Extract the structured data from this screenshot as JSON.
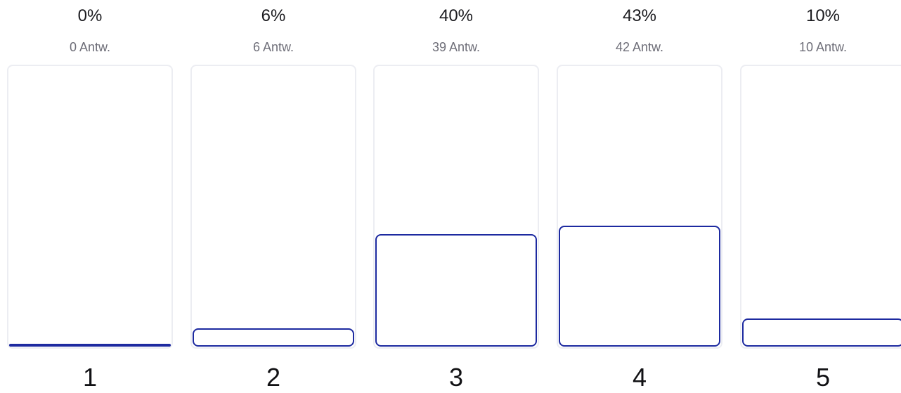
{
  "chart_data": {
    "type": "bar",
    "categories": [
      "1",
      "2",
      "3",
      "4",
      "5"
    ],
    "percent_labels": [
      "0%",
      "6%",
      "40%",
      "43%",
      "10%"
    ],
    "count_labels": [
      "0 Antw.",
      "6 Antw.",
      "39 Antw.",
      "42 Antw.",
      "10 Antw."
    ],
    "values": [
      0,
      6,
      40,
      43,
      10
    ],
    "ylim": [
      0,
      100
    ],
    "colors": {
      "bar_border": "#1d2aa0",
      "track_border": "#ecedf2"
    }
  }
}
